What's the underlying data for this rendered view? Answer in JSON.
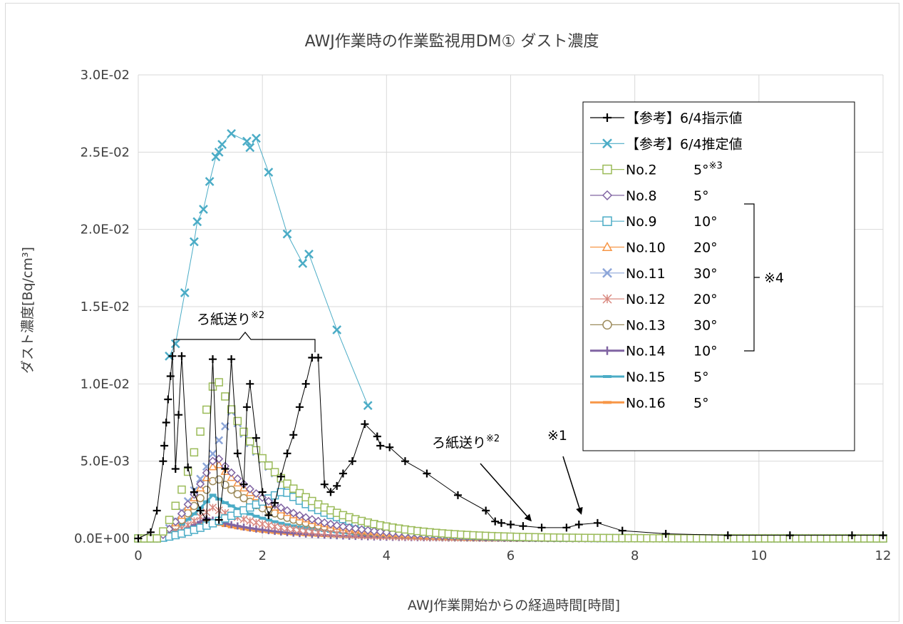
{
  "chart_data": {
    "type": "scatter",
    "title": "AWJ作業時の作業監視用DM① ダスト濃度",
    "xlabel": "AWJ作業開始からの経過時間[時間]",
    "ylabel": "ダスト濃度[Bq/cm³]",
    "xlim": [
      0,
      12
    ],
    "ylim": [
      0,
      0.03
    ],
    "xticks": [
      "0",
      "2",
      "4",
      "6",
      "8",
      "10",
      "12"
    ],
    "yticks": [
      "0.0E+00",
      "5.0E-03",
      "1.0E-02",
      "1.5E-02",
      "2.0E-02",
      "2.5E-02",
      "3.0E-02"
    ],
    "grid": true,
    "legend_position": "top-right",
    "series": [
      {
        "name": "【参考】6/4指示値",
        "color": "#000000",
        "marker": "plus",
        "line": true,
        "x": [
          0,
          0.2,
          0.3,
          0.4,
          0.42,
          0.45,
          0.48,
          0.52,
          0.55,
          0.6,
          0.65,
          0.7,
          0.8,
          0.9,
          1.0,
          1.1,
          1.2,
          1.3,
          1.4,
          1.5,
          1.6,
          1.7,
          1.75,
          1.8,
          1.9,
          2.0,
          2.1,
          2.2,
          2.3,
          2.4,
          2.5,
          2.6,
          2.7,
          2.8,
          2.9,
          3.0,
          3.1,
          3.2,
          3.3,
          3.45,
          3.65,
          3.85,
          3.9,
          4.05,
          4.3,
          4.65,
          5.15,
          5.6,
          5.75,
          5.85,
          6.0,
          6.2,
          6.5,
          6.9,
          7.1,
          7.4,
          7.8,
          8.5,
          9.5,
          10.5,
          11.5,
          12
        ],
        "y": [
          0,
          0.0004,
          0.0018,
          0.005,
          0.006,
          0.0075,
          0.009,
          0.0105,
          0.0118,
          0.0045,
          0.008,
          0.0118,
          0.0046,
          0.003,
          0.0018,
          0.0012,
          0.0116,
          0.0012,
          0.0045,
          0.0116,
          0.0055,
          0.0035,
          0.0085,
          0.01,
          0.0065,
          0.003,
          0.0015,
          0.0023,
          0.004,
          0.0055,
          0.0067,
          0.0085,
          0.01,
          0.0117,
          0.0117,
          0.0035,
          0.003,
          0.0034,
          0.0042,
          0.005,
          0.0074,
          0.0066,
          0.006,
          0.0059,
          0.005,
          0.0042,
          0.0028,
          0.0018,
          0.0011,
          0.001,
          0.0009,
          0.0008,
          0.0007,
          0.0007,
          0.0009,
          0.001,
          0.0005,
          0.0003,
          0.0002,
          0.0002,
          0.0002,
          0.0002
        ]
      },
      {
        "name": "【参考】6/4推定値",
        "color": "#4bacc6",
        "marker": "x",
        "line": true,
        "x": [
          0.5,
          0.6,
          0.75,
          0.9,
          0.95,
          1.05,
          1.15,
          1.25,
          1.3,
          1.35,
          1.5,
          1.75,
          1.8,
          1.9,
          2.1,
          2.4,
          2.65,
          2.75,
          3.2,
          3.7
        ],
        "y": [
          0.0118,
          0.0126,
          0.0159,
          0.0192,
          0.0205,
          0.0213,
          0.0231,
          0.0247,
          0.025,
          0.0255,
          0.0262,
          0.0257,
          0.0253,
          0.0259,
          0.0237,
          0.0197,
          0.0178,
          0.0184,
          0.0135,
          0.0086
        ]
      },
      {
        "name": "No.2",
        "label_extra": "5°",
        "note": "※3",
        "color": "#9bbb59",
        "marker": "square-open",
        "line": false,
        "peak_x": 1.25,
        "peak_y": 0.0106
      },
      {
        "name": "No.8",
        "label_extra": "5°",
        "color": "#8064a2",
        "marker": "diamond-open",
        "line": false,
        "peak_x": 1.25,
        "peak_y": 0.0054
      },
      {
        "name": "No.9",
        "label_extra": "10°",
        "color": "#4bacc6",
        "marker": "square-open",
        "line": false,
        "peak_x": 2.35,
        "peak_y": 0.0031
      },
      {
        "name": "No.10",
        "label_extra": "20°",
        "color": "#f79646",
        "marker": "triangle-open",
        "line": false,
        "peak_x": 1.25,
        "peak_y": 0.005
      },
      {
        "name": "No.11",
        "label_extra": "30°",
        "color": "#8da6d9",
        "marker": "x",
        "line": false,
        "peak_x": 1.5,
        "peak_y": 0.0082
      },
      {
        "name": "No.12",
        "label_extra": "20°",
        "color": "#d9887f",
        "marker": "asterisk",
        "line": false,
        "peak_x": 1.2,
        "peak_y": 0.002
      },
      {
        "name": "No.13",
        "label_extra": "30°",
        "color": "#9c8b5c",
        "marker": "circle-open",
        "line": false,
        "peak_x": 1.25,
        "peak_y": 0.004
      },
      {
        "name": "No.14",
        "label_extra": "10°",
        "color": "#8064a2",
        "marker": "plus-thick",
        "line": true,
        "peak_x": 1.1,
        "peak_y": 0.0013
      },
      {
        "name": "No.15",
        "label_extra": "5°",
        "color": "#4bacc6",
        "marker": "dash-thick",
        "line": true,
        "peak_x": 1.2,
        "peak_y": 0.0028
      },
      {
        "name": "No.16",
        "label_extra": "5°",
        "color": "#f79646",
        "marker": "dash-thick",
        "line": true,
        "peak_x": 1.1,
        "peak_y": 0.0011
      }
    ],
    "annotations": {
      "filter_feed_main": "ろ紙送り",
      "filter_feed_main_sup": "※2",
      "filter_feed_low": "ろ紙送り",
      "filter_feed_low_sup": "※2",
      "note1": "※1",
      "note4": "※4"
    }
  }
}
